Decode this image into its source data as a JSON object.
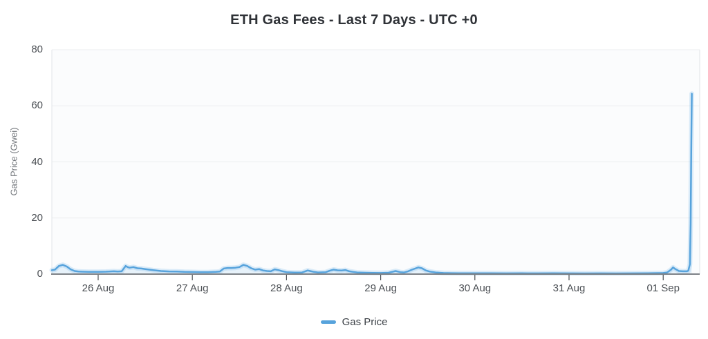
{
  "chart": {
    "title": "ETH Gas Fees - Last 7 Days - UTC +0",
    "y_axis_label": "Gas Price (Gwei)",
    "legend_label": "Gas Price"
  },
  "colors": {
    "line": "#57a3dc",
    "line_glow": "rgba(132,190,238,0.28)",
    "area_fill": "rgba(132,190,238,0.16)",
    "plot_background": "#fbfcfd",
    "gridline": "#ebedef",
    "plot_border": "#e2e5e8",
    "axis_line": "#7d8186",
    "tick_mark": "#4a4e52",
    "tick_text": "#4b4f54",
    "axis_title_text": "#75797e",
    "title_text": "#2f3237"
  },
  "chart_data": {
    "type": "line",
    "title": "ETH Gas Fees - Last 7 Days - UTC +0",
    "xlabel": "",
    "ylabel": "Gas Price (Gwei)",
    "ylim": [
      0,
      80
    ],
    "y_ticks": [
      0,
      20,
      40,
      60,
      80
    ],
    "x_note": "x values are hours since 25 Aug 00:00 UTC+0",
    "xlim_hours": [
      12.2,
      177.3
    ],
    "x_ticks": [
      {
        "hours": 24,
        "label": "26 Aug"
      },
      {
        "hours": 48,
        "label": "27 Aug"
      },
      {
        "hours": 72,
        "label": "28 Aug"
      },
      {
        "hours": 96,
        "label": "29 Aug"
      },
      {
        "hours": 120,
        "label": "30 Aug"
      },
      {
        "hours": 144,
        "label": "31 Aug"
      },
      {
        "hours": 168,
        "label": "01 Sep"
      }
    ],
    "grid": "horizontal",
    "legend_position": "bottom",
    "series": [
      {
        "name": "Gas Price",
        "color": "#57a3dc",
        "points": [
          [
            12.2,
            1.4
          ],
          [
            13,
            1.6
          ],
          [
            14,
            2.9
          ],
          [
            15,
            3.3
          ],
          [
            16,
            2.7
          ],
          [
            17,
            1.7
          ],
          [
            18,
            1.1
          ],
          [
            19,
            0.9
          ],
          [
            20,
            0.85
          ],
          [
            22,
            0.8
          ],
          [
            24,
            0.8
          ],
          [
            26,
            0.85
          ],
          [
            28,
            1.0
          ],
          [
            29,
            0.9
          ],
          [
            30,
            1.0
          ],
          [
            31,
            2.9
          ],
          [
            31.5,
            2.5
          ],
          [
            32,
            2.3
          ],
          [
            33,
            2.5
          ],
          [
            34,
            2.1
          ],
          [
            35,
            2.0
          ],
          [
            36,
            1.8
          ],
          [
            38,
            1.4
          ],
          [
            40,
            1.1
          ],
          [
            42,
            0.95
          ],
          [
            44,
            0.9
          ],
          [
            46,
            0.8
          ],
          [
            48,
            0.75
          ],
          [
            50,
            0.7
          ],
          [
            52,
            0.7
          ],
          [
            54,
            0.8
          ],
          [
            55,
            0.9
          ],
          [
            56,
            2.0
          ],
          [
            57,
            2.2
          ],
          [
            58,
            2.2
          ],
          [
            59,
            2.3
          ],
          [
            60,
            2.5
          ],
          [
            61,
            3.3
          ],
          [
            62,
            2.9
          ],
          [
            63,
            2.1
          ],
          [
            64,
            1.6
          ],
          [
            65,
            1.8
          ],
          [
            66,
            1.3
          ],
          [
            67,
            1.1
          ],
          [
            68,
            1.0
          ],
          [
            69,
            1.7
          ],
          [
            70,
            1.4
          ],
          [
            71,
            1.0
          ],
          [
            72,
            0.7
          ],
          [
            74,
            0.55
          ],
          [
            76,
            0.6
          ],
          [
            77.4,
            1.3
          ],
          [
            78,
            1.1
          ],
          [
            79,
            0.8
          ],
          [
            80,
            0.6
          ],
          [
            82,
            0.7
          ],
          [
            83,
            1.2
          ],
          [
            84,
            1.6
          ],
          [
            85,
            1.35
          ],
          [
            86,
            1.3
          ],
          [
            87,
            1.45
          ],
          [
            88,
            1.0
          ],
          [
            89,
            0.8
          ],
          [
            90,
            0.6
          ],
          [
            92,
            0.5
          ],
          [
            94,
            0.45
          ],
          [
            96,
            0.4
          ],
          [
            98,
            0.5
          ],
          [
            99.8,
            1.1
          ],
          [
            101,
            0.7
          ],
          [
            102,
            0.6
          ],
          [
            103,
            1.0
          ],
          [
            104,
            1.6
          ],
          [
            105.6,
            2.4
          ],
          [
            106.5,
            2.1
          ],
          [
            107.5,
            1.3
          ],
          [
            108.5,
            0.9
          ],
          [
            110,
            0.6
          ],
          [
            112,
            0.4
          ],
          [
            114,
            0.35
          ],
          [
            116,
            0.3
          ],
          [
            118,
            0.3
          ],
          [
            120,
            0.3
          ],
          [
            124,
            0.3
          ],
          [
            128,
            0.28
          ],
          [
            132,
            0.3
          ],
          [
            136,
            0.28
          ],
          [
            140,
            0.3
          ],
          [
            144,
            0.28
          ],
          [
            148,
            0.25
          ],
          [
            152,
            0.28
          ],
          [
            156,
            0.25
          ],
          [
            160,
            0.28
          ],
          [
            164,
            0.3
          ],
          [
            168,
            0.4
          ],
          [
            169,
            0.6
          ],
          [
            170,
            1.6
          ],
          [
            170.5,
            2.4
          ],
          [
            171,
            1.9
          ],
          [
            172,
            1.1
          ],
          [
            173,
            1.0
          ],
          [
            174,
            1.0
          ],
          [
            174.4,
            1.2
          ],
          [
            174.8,
            3.5
          ],
          [
            175.0,
            18
          ],
          [
            175.15,
            45
          ],
          [
            175.3,
            64.3
          ]
        ]
      }
    ]
  }
}
